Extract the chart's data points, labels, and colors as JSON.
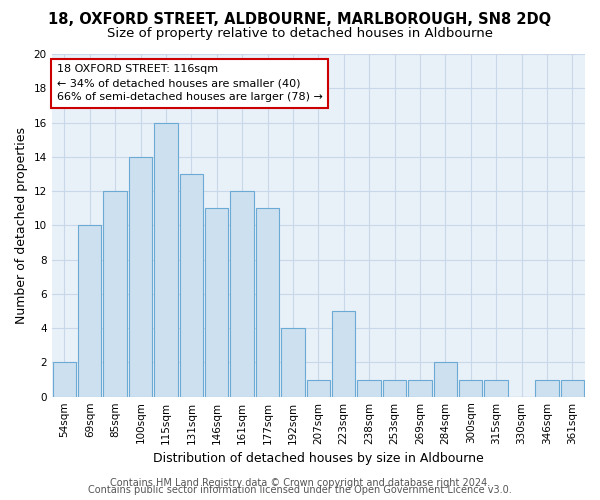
{
  "title": "18, OXFORD STREET, ALDBOURNE, MARLBOROUGH, SN8 2DQ",
  "subtitle": "Size of property relative to detached houses in Aldbourne",
  "xlabel": "Distribution of detached houses by size in Aldbourne",
  "ylabel": "Number of detached properties",
  "bins": [
    "54sqm",
    "69sqm",
    "85sqm",
    "100sqm",
    "115sqm",
    "131sqm",
    "146sqm",
    "161sqm",
    "177sqm",
    "192sqm",
    "207sqm",
    "223sqm",
    "238sqm",
    "253sqm",
    "269sqm",
    "284sqm",
    "300sqm",
    "315sqm",
    "330sqm",
    "346sqm",
    "361sqm"
  ],
  "values": [
    2,
    10,
    12,
    14,
    16,
    13,
    11,
    12,
    11,
    4,
    1,
    5,
    1,
    1,
    1,
    2,
    1,
    1,
    0,
    1,
    1
  ],
  "bar_color": "#cde0f0",
  "bar_edgecolor": "#6aaad4",
  "annotation_line1": "18 OXFORD STREET: 116sqm",
  "annotation_line2": "← 34% of detached houses are smaller (40)",
  "annotation_line3": "66% of semi-detached houses are larger (78) →",
  "annotation_box_edgecolor": "#cc0000",
  "annotation_box_facecolor": "#ffffff",
  "ylim": [
    0,
    20
  ],
  "yticks": [
    0,
    2,
    4,
    6,
    8,
    10,
    12,
    14,
    16,
    18,
    20
  ],
  "grid_color": "#c8d8e8",
  "bg_color": "#ffffff",
  "plot_bg_color": "#e8f0f8",
  "footer1": "Contains HM Land Registry data © Crown copyright and database right 2024.",
  "footer2": "Contains public sector information licensed under the Open Government Licence v3.0.",
  "title_fontsize": 10.5,
  "subtitle_fontsize": 9.5,
  "axis_label_fontsize": 9,
  "tick_fontsize": 7.5,
  "annotation_fontsize": 8,
  "footer_fontsize": 7
}
